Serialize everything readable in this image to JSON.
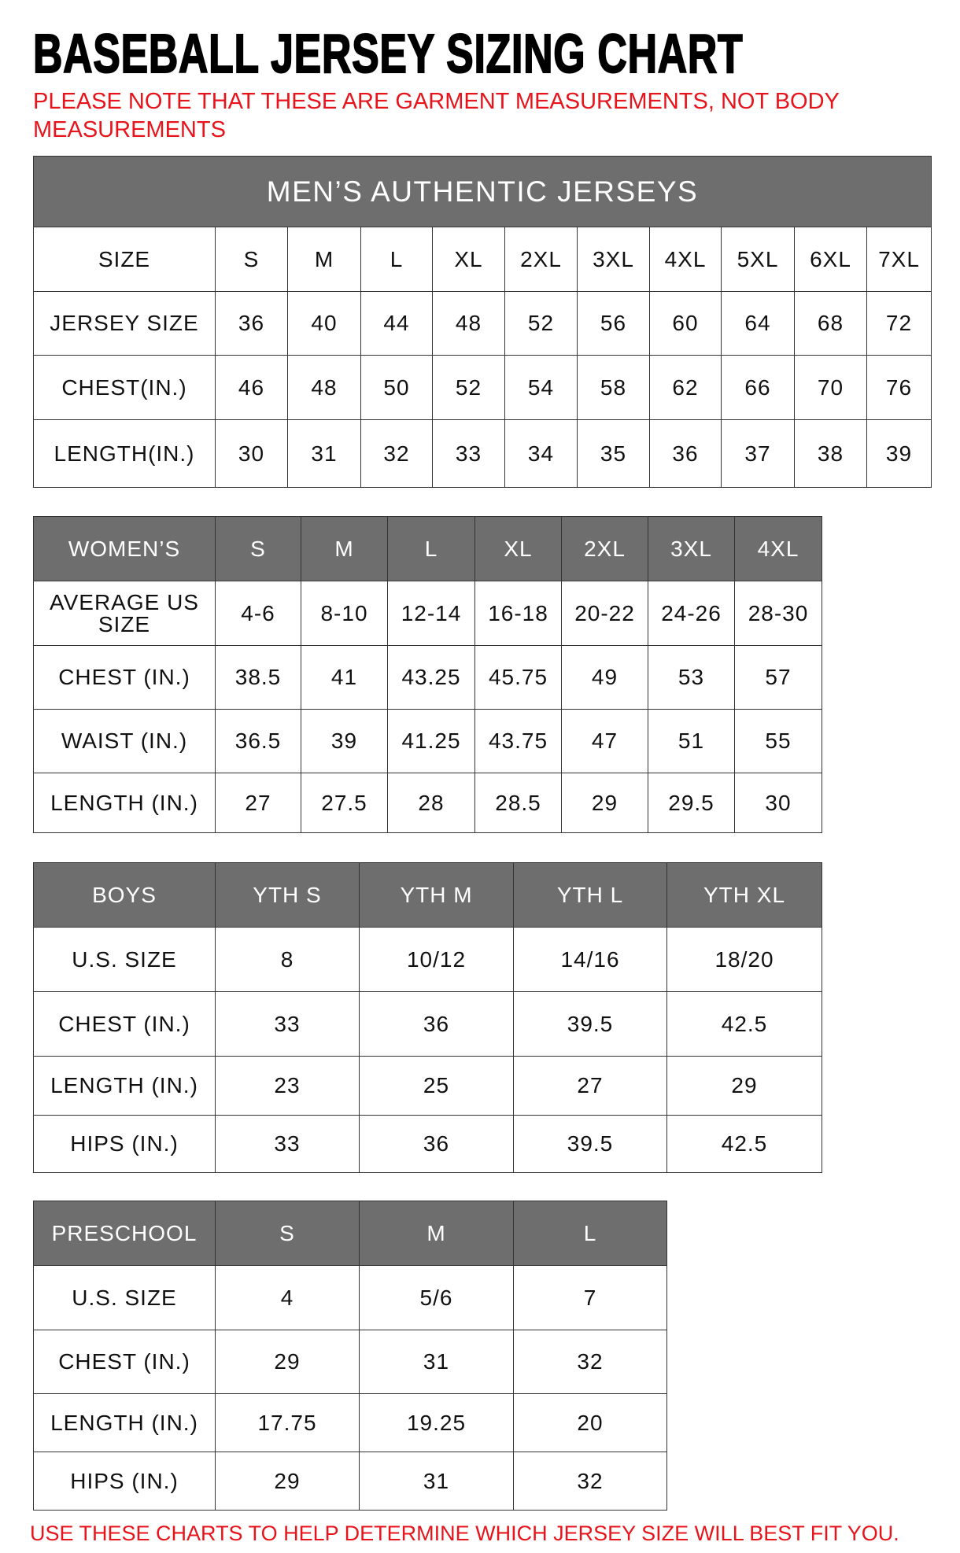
{
  "title": "BASEBALL JERSEY SIZING CHART",
  "note": "PLEASE NOTE THAT THESE ARE GARMENT MEASUREMENTS, NOT BODY MEASUREMENTS",
  "footer": "USE THESE CHARTS TO HELP DETERMINE WHICH JERSEY SIZE WILL BEST FIT YOU.",
  "colors": {
    "header_bg": "#6e6e6e",
    "note_red": "#e8141c"
  },
  "tables": [
    {
      "id": "mens",
      "caption": "MEN’S AUTHENTIC JERSEYS",
      "header": [
        "SIZE",
        "S",
        "M",
        "L",
        "XL",
        "2XL",
        "3XL",
        "4XL",
        "5XL",
        "6XL",
        "7XL"
      ],
      "rows": [
        [
          "JERSEY SIZE",
          "36",
          "40",
          "44",
          "48",
          "52",
          "56",
          "60",
          "64",
          "68",
          "72"
        ],
        [
          "CHEST(IN.)",
          "46",
          "48",
          "50",
          "52",
          "54",
          "58",
          "62",
          "66",
          "70",
          "76"
        ],
        [
          "LENGTH(IN.)",
          "30",
          "31",
          "32",
          "33",
          "34",
          "35",
          "36",
          "37",
          "38",
          "39"
        ]
      ]
    },
    {
      "id": "womens",
      "header": [
        "WOMEN’S",
        "S",
        "M",
        "L",
        "XL",
        "2XL",
        "3XL",
        "4XL"
      ],
      "rows": [
        [
          "AVERAGE US SIZE",
          "4-6",
          "8-10",
          "12-14",
          "16-18",
          "20-22",
          "24-26",
          "28-30"
        ],
        [
          "CHEST (IN.)",
          "38.5",
          "41",
          "43.25",
          "45.75",
          "49",
          "53",
          "57"
        ],
        [
          "WAIST (IN.)",
          "36.5",
          "39",
          "41.25",
          "43.75",
          "47",
          "51",
          "55"
        ],
        [
          "LENGTH (IN.)",
          "27",
          "27.5",
          "28",
          "28.5",
          "29",
          "29.5",
          "30"
        ]
      ]
    },
    {
      "id": "boys",
      "header": [
        "BOYS",
        "YTH S",
        "YTH M",
        "YTH L",
        "YTH XL"
      ],
      "rows": [
        [
          "U.S. SIZE",
          "8",
          "10/12",
          "14/16",
          "18/20"
        ],
        [
          "CHEST (IN.)",
          "33",
          "36",
          "39.5",
          "42.5"
        ],
        [
          "LENGTH (IN.)",
          "23",
          "25",
          "27",
          "29"
        ],
        [
          "HIPS (IN.)",
          "33",
          "36",
          "39.5",
          "42.5"
        ]
      ]
    },
    {
      "id": "preschool",
      "header": [
        "PRESCHOOL",
        "S",
        "M",
        "L"
      ],
      "rows": [
        [
          "U.S. SIZE",
          "4",
          "5/6",
          "7"
        ],
        [
          "CHEST (IN.)",
          "29",
          "31",
          "32"
        ],
        [
          "LENGTH (IN.)",
          "17.75",
          "19.25",
          "20"
        ],
        [
          "HIPS (IN.)",
          "29",
          "31",
          "32"
        ]
      ]
    }
  ]
}
